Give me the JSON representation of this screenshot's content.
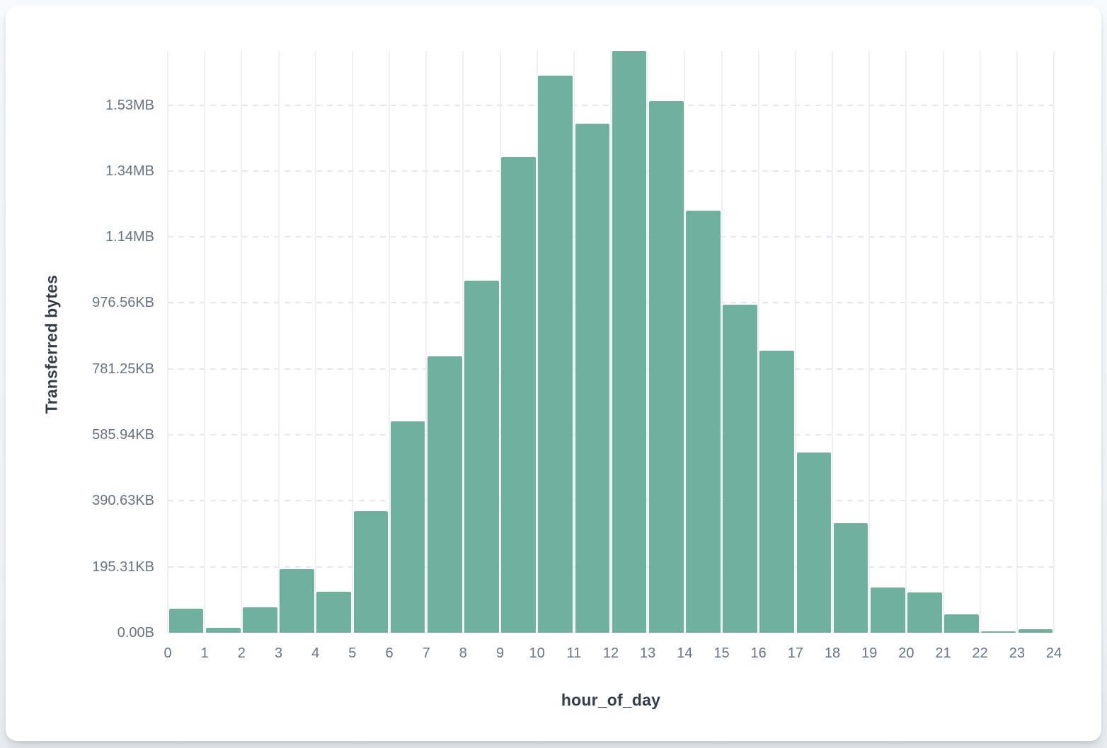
{
  "page": {
    "background": "#f3f4f7",
    "card_background": "#ffffff"
  },
  "chart_data": {
    "type": "bar",
    "subtype": "histogram",
    "title": "",
    "xlabel": "hour_of_day",
    "ylabel": "Transferred bytes",
    "units": "bytes",
    "categories": [
      0,
      1,
      2,
      3,
      4,
      5,
      6,
      7,
      8,
      9,
      10,
      11,
      12,
      13,
      14,
      15,
      16,
      17,
      18,
      19,
      20,
      21,
      22,
      23
    ],
    "values": [
      73000,
      14000,
      77000,
      194000,
      124000,
      369000,
      641000,
      839000,
      1067000,
      1443000,
      1690000,
      1543000,
      1764000,
      1612000,
      1279000,
      995000,
      856000,
      546000,
      332000,
      138000,
      123000,
      55000,
      4000,
      11000
    ],
    "x_tick_labels": [
      "0",
      "1",
      "2",
      "3",
      "4",
      "5",
      "6",
      "7",
      "8",
      "9",
      "10",
      "11",
      "12",
      "13",
      "14",
      "15",
      "16",
      "17",
      "18",
      "19",
      "20",
      "21",
      "22",
      "23",
      "24"
    ],
    "y_ticks": [
      {
        "value": 0,
        "label": "0.00B"
      },
      {
        "value": 200000,
        "label": "195.31KB"
      },
      {
        "value": 400000,
        "label": "390.63KB"
      },
      {
        "value": 600000,
        "label": "585.94KB"
      },
      {
        "value": 800000,
        "label": "781.25KB"
      },
      {
        "value": 1000000,
        "label": "976.56KB"
      },
      {
        "value": 1200000,
        "label": "1.14MB"
      },
      {
        "value": 1400000,
        "label": "1.34MB"
      },
      {
        "value": 1600000,
        "label": "1.53MB"
      }
    ],
    "xlim": [
      0,
      24
    ],
    "ylim": [
      0,
      1764000
    ],
    "bar_color": "#6fb19d",
    "grid": {
      "vertical": "solid",
      "horizontal": "dashed"
    },
    "legend": "none"
  }
}
